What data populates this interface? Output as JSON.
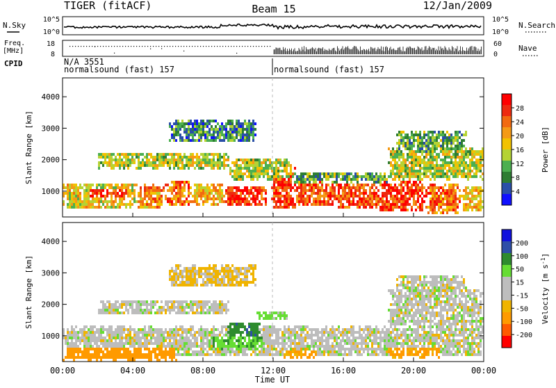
{
  "header": {
    "title": "TIGER (fitACF)",
    "beam": "Beam 15",
    "date": "12/Jan/2009"
  },
  "top_strips": {
    "nsky_label": "N.Sky",
    "nsky_ticks": [
      "10^5",
      "10^0"
    ],
    "nsearch_label": "N.Search",
    "nsearch_ticks": [
      "10^5",
      "10^0"
    ],
    "freq_label_1": "Freq.",
    "freq_label_2": "[MHz]",
    "freq_ticks": [
      "18",
      "8"
    ],
    "nave_label": "Nave",
    "nave_ticks": [
      "60",
      "0"
    ],
    "cpid_label": "CPID",
    "cpid_entries": [
      {
        "text": "N/A 3551",
        "start": "00:00"
      },
      {
        "text": "normalsound (fast) 157",
        "start": "00:00"
      },
      {
        "text": "normalsound (fast) 157",
        "start": "12:00"
      }
    ]
  },
  "axes": {
    "ylabel": "Slant Range [km]",
    "yticks": [
      1000,
      2000,
      3000,
      4000
    ],
    "xlabel": "Time UT",
    "xticks": [
      "00:00",
      "04:00",
      "08:00",
      "12:00",
      "16:00",
      "20:00",
      "00:00"
    ]
  },
  "colors": {
    "power": [
      "#1010ff",
      "#2a4fa8",
      "#2e7d32",
      "#4caf50",
      "#b5d334",
      "#f2c200",
      "#f59a16",
      "#f26a10",
      "#ee2a10",
      "#ff0000"
    ],
    "velocity": [
      "#ff0000",
      "#ff5a00",
      "#ff9a00",
      "#f0b400",
      "#bdbdbd",
      "#bdbdbd",
      "#66dd33",
      "#2e8b2e",
      "#2e4fa8",
      "#1010dd"
    ]
  },
  "chart_data": [
    {
      "type": "heatmap",
      "panel": "power",
      "xlabel": "Time UT",
      "ylabel": "Slant Range [km]",
      "xlim": [
        0,
        24
      ],
      "ylim": [
        180,
        4600
      ],
      "colorbar_label": "Power [dB]",
      "colorbar_ticks": [
        4,
        8,
        12,
        16,
        20,
        24,
        28
      ],
      "colorbar_range": [
        0,
        30
      ],
      "features": [
        {
          "t0": 0.0,
          "t1": 4.2,
          "r0": 450,
          "r1": 1300,
          "level": 16
        },
        {
          "t0": 1.3,
          "t1": 3.6,
          "r0": 800,
          "r1": 1100,
          "level": 26
        },
        {
          "t0": 4.2,
          "t1": 5.8,
          "r0": 500,
          "r1": 1250,
          "level": 20
        },
        {
          "t0": 5.8,
          "t1": 7.3,
          "r0": 550,
          "r1": 1400,
          "level": 22
        },
        {
          "t0": 7.3,
          "t1": 9.2,
          "r0": 600,
          "r1": 1300,
          "level": 18
        },
        {
          "t0": 9.2,
          "t1": 11.6,
          "r0": 550,
          "r1": 1200,
          "level": 26
        },
        {
          "t0": 11.8,
          "t1": 13.2,
          "r0": 500,
          "r1": 1900,
          "level": 26
        },
        {
          "t0": 13.2,
          "t1": 15.5,
          "r0": 550,
          "r1": 1350,
          "level": 24
        },
        {
          "t0": 15.5,
          "t1": 18.0,
          "r0": 500,
          "r1": 1300,
          "level": 24
        },
        {
          "t0": 18.0,
          "t1": 20.7,
          "r0": 400,
          "r1": 1350,
          "level": 26
        },
        {
          "t0": 20.7,
          "t1": 22.6,
          "r0": 350,
          "r1": 1250,
          "level": 22
        },
        {
          "t0": 22.6,
          "t1": 24.0,
          "r0": 400,
          "r1": 1200,
          "level": 18
        },
        {
          "t0": 2.0,
          "t1": 9.5,
          "r0": 1750,
          "r1": 2250,
          "level": 14
        },
        {
          "t0": 9.5,
          "t1": 13.0,
          "r0": 1400,
          "r1": 2100,
          "level": 14
        },
        {
          "t0": 13.0,
          "t1": 18.5,
          "r0": 1300,
          "r1": 1650,
          "level": 10
        },
        {
          "t0": 18.5,
          "t1": 24.0,
          "r0": 1400,
          "r1": 2400,
          "level": 14
        },
        {
          "t0": 6.0,
          "t1": 11.0,
          "r0": 2600,
          "r1": 3300,
          "level": 8
        },
        {
          "t0": 19.0,
          "t1": 23.0,
          "r0": 2300,
          "r1": 3000,
          "level": 10
        }
      ]
    },
    {
      "type": "heatmap",
      "panel": "velocity",
      "xlabel": "Time UT",
      "ylabel": "Slant Range [km]",
      "xlim": [
        0,
        24
      ],
      "ylim": [
        180,
        4600
      ],
      "colorbar_label": "Velocity [m s^-1]",
      "colorbar_ticks": [
        -200,
        -100,
        -50,
        -15,
        15,
        50,
        100,
        200
      ],
      "colorbar_range": [
        -250,
        250
      ],
      "features": [
        {
          "t0": 0.0,
          "t1": 24.0,
          "r0": 400,
          "r1": 1350,
          "level": 0
        },
        {
          "t0": 0.0,
          "t1": 6.5,
          "r0": 250,
          "r1": 700,
          "level": -70
        },
        {
          "t0": 8.3,
          "t1": 11.5,
          "r0": 600,
          "r1": 1050,
          "level": 40
        },
        {
          "t0": 9.3,
          "t1": 11.2,
          "r0": 1000,
          "r1": 1450,
          "level": 85
        },
        {
          "t0": 11.0,
          "t1": 12.8,
          "r0": 1550,
          "r1": 1850,
          "level": 30
        },
        {
          "t0": 12.5,
          "t1": 14.5,
          "r0": 350,
          "r1": 650,
          "level": -60
        },
        {
          "t0": 18.5,
          "t1": 21.5,
          "r0": 350,
          "r1": 700,
          "level": -60
        },
        {
          "t0": 2.0,
          "t1": 9.5,
          "r0": 1700,
          "r1": 2200,
          "level": 0
        },
        {
          "t0": 18.5,
          "t1": 24.0,
          "r0": 1300,
          "r1": 2500,
          "level": 0
        },
        {
          "t0": 6.0,
          "t1": 11.0,
          "r0": 2600,
          "r1": 3300,
          "level": -20
        },
        {
          "t0": 19.0,
          "t1": 23.0,
          "r0": 2300,
          "r1": 3000,
          "level": 0
        }
      ]
    }
  ]
}
